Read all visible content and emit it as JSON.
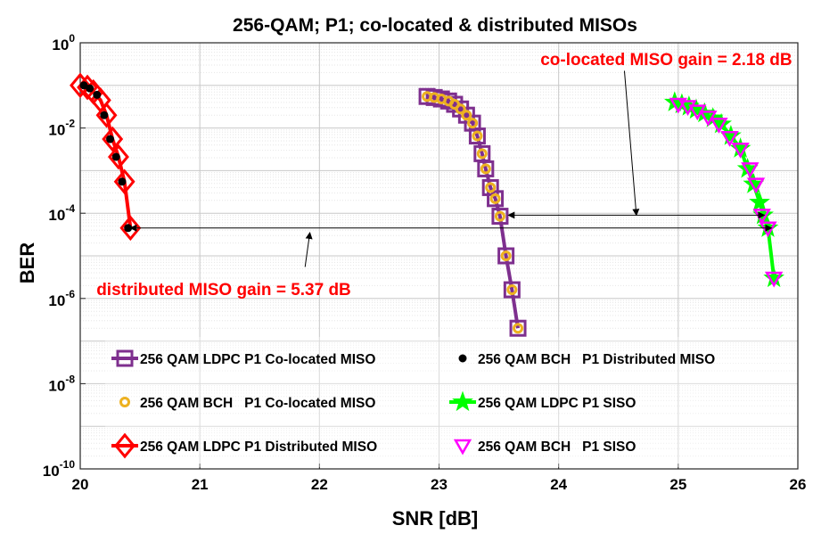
{
  "chart_data": {
    "type": "line",
    "title": "256-QAM; P1; co-located & distributed MISOs",
    "xlabel": "SNR [dB]",
    "ylabel": "BER",
    "xlim": [
      20,
      26
    ],
    "ylim": [
      1e-10,
      1
    ],
    "yscale": "log",
    "grid": true,
    "xticks": [
      "20",
      "21",
      "22",
      "23",
      "24",
      "25",
      "26"
    ],
    "yticks": [
      {
        "base": "10",
        "exp": "0"
      },
      {
        "base": "10",
        "exp": "-2"
      },
      {
        "base": "10",
        "exp": "-4"
      },
      {
        "base": "10",
        "exp": "-6"
      },
      {
        "base": "10",
        "exp": "-8"
      },
      {
        "base": "10",
        "exp": "-10"
      }
    ],
    "legend_position": "lower-left",
    "series": [
      {
        "name": "256 QAM LDPC P1 Co-located MISO",
        "color": "#7e2f8e",
        "marker": "square",
        "line": true,
        "x": [
          22.9,
          22.96,
          23.02,
          23.08,
          23.13,
          23.18,
          23.23,
          23.28,
          23.32,
          23.36,
          23.39,
          23.43,
          23.47,
          23.51,
          23.56,
          23.61,
          23.66
        ],
        "y": [
          0.055,
          0.052,
          0.048,
          0.043,
          0.036,
          0.028,
          0.02,
          0.013,
          0.0065,
          0.0025,
          0.0011,
          0.0004,
          0.00022,
          8.5e-05,
          1e-05,
          1.6e-06,
          2e-07
        ]
      },
      {
        "name": "256 QAM BCH   P1 Distributed MISO",
        "color": "#000000",
        "marker": "dot",
        "line": false,
        "x": [
          20.03,
          20.08,
          20.14,
          20.2,
          20.25,
          20.3,
          20.35,
          20.4
        ],
        "y": [
          0.1,
          0.085,
          0.06,
          0.02,
          0.0055,
          0.0021,
          0.00055,
          4.5e-05
        ]
      },
      {
        "name": "256 QAM BCH   P1 Co-located MISO",
        "color": "#edb120",
        "marker": "circle",
        "line": false,
        "x": [
          22.9,
          22.96,
          23.02,
          23.08,
          23.13,
          23.18,
          23.23,
          23.28,
          23.32,
          23.36,
          23.39,
          23.43,
          23.47,
          23.51,
          23.56,
          23.61,
          23.66
        ],
        "y": [
          0.055,
          0.052,
          0.048,
          0.043,
          0.036,
          0.028,
          0.02,
          0.013,
          0.0065,
          0.0025,
          0.0011,
          0.0004,
          0.00022,
          8.5e-05,
          1e-05,
          1.6e-06,
          2e-07
        ]
      },
      {
        "name": "256 QAM LDPC P1 SISO",
        "color": "#00ff00",
        "marker": "star",
        "line": true,
        "x": [
          24.97,
          25.03,
          25.09,
          25.15,
          25.22,
          25.29,
          25.36,
          25.44,
          25.52,
          25.58,
          25.63,
          25.68,
          25.71,
          25.75,
          25.8
        ],
        "y": [
          0.04,
          0.036,
          0.032,
          0.027,
          0.022,
          0.017,
          0.0123,
          0.0065,
          0.0033,
          0.0011,
          0.00048,
          0.00018,
          9e-05,
          4.5e-05,
          3e-06
        ]
      },
      {
        "name": "256 QAM LDPC P1 Distributed MISO",
        "color": "#ff0000",
        "marker": "diamond",
        "line": true,
        "x": [
          20.0,
          20.06,
          20.11,
          20.17,
          20.22,
          20.27,
          20.32,
          20.37,
          20.42
        ],
        "y": [
          0.1,
          0.09,
          0.07,
          0.045,
          0.02,
          0.0055,
          0.0021,
          0.00055,
          4.5e-05
        ]
      },
      {
        "name": "256 QAM BCH   P1 SISO",
        "color": "#ff00ff",
        "marker": "triangle-down",
        "line": false,
        "x": [
          25.0,
          25.08,
          25.16,
          25.25,
          25.34,
          25.43,
          25.52,
          25.6,
          25.65,
          25.7,
          25.75,
          25.8
        ],
        "y": [
          0.036,
          0.032,
          0.025,
          0.018,
          0.0123,
          0.006,
          0.0032,
          0.0011,
          0.00048,
          9e-05,
          4.5e-05,
          3e-06
        ]
      }
    ],
    "annotations": [
      {
        "text": "co-located MISO gain = 2.18 dB",
        "text_at": {
          "x": 24.9,
          "y": 0.3
        },
        "arrow": {
          "from_x": 23.58,
          "to_x": 25.72,
          "y": 9e-05
        },
        "pointer": {
          "from_x": 24.55,
          "from_y": 0.22,
          "to_x": 24.65,
          "to_y": 9e-05
        }
      },
      {
        "text": "distributed MISO gain = 5.37 dB",
        "text_at": {
          "x": 21.2,
          "y": 1.2e-06
        },
        "arrow": {
          "from_x": 20.42,
          "to_x": 25.78,
          "y": 4.5e-05
        },
        "pointer": {
          "from_x": 21.88,
          "from_y": 5.5e-06,
          "to_x": 21.92,
          "to_y": 3.5e-05
        }
      }
    ]
  }
}
